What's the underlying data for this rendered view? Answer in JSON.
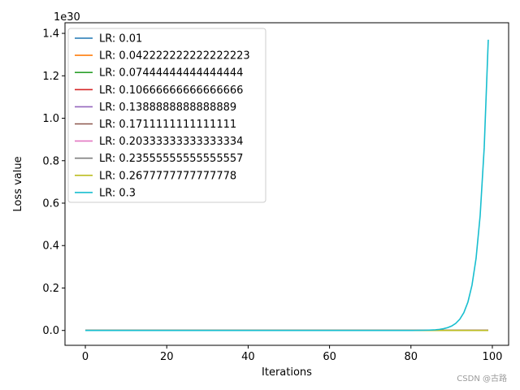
{
  "chart_data": {
    "type": "line",
    "title": "",
    "xlabel": "Iterations",
    "ylabel": "Loss value",
    "y_offset_text": "1e30",
    "y_scale_factor": 1e+30,
    "xlim": [
      -5,
      104
    ],
    "ylim": [
      -0.07,
      1.45
    ],
    "xticks": [
      0,
      20,
      40,
      60,
      80,
      100
    ],
    "xtick_labels": [
      "0",
      "20",
      "40",
      "60",
      "80",
      "100"
    ],
    "yticks": [
      0.0,
      0.2,
      0.4,
      0.6,
      0.8,
      1.0,
      1.2,
      1.4
    ],
    "ytick_labels": [
      "0.0",
      "0.2",
      "0.4",
      "0.6",
      "0.8",
      "1.0",
      "1.2",
      "1.4"
    ],
    "grid": false,
    "legend_position": "top-left",
    "x_range": [
      0,
      99
    ],
    "series": [
      {
        "name": "LR: 0.01",
        "color": "#1f77b4",
        "growth_end": 0,
        "growth_rate": 0
      },
      {
        "name": "LR: 0.042222222222222223",
        "color": "#ff7f0e",
        "growth_end": 0,
        "growth_rate": 0
      },
      {
        "name": "LR: 0.07444444444444444",
        "color": "#2ca02c",
        "growth_end": 0,
        "growth_rate": 0
      },
      {
        "name": "LR: 0.10666666666666666",
        "color": "#d62728",
        "growth_end": 0,
        "growth_rate": 0
      },
      {
        "name": "LR: 0.1388888888888889",
        "color": "#9467bd",
        "growth_end": 0,
        "growth_rate": 0
      },
      {
        "name": "LR: 0.1711111111111111",
        "color": "#8c564b",
        "growth_end": 0,
        "growth_rate": 0
      },
      {
        "name": "LR: 0.20333333333333334",
        "color": "#e377c2",
        "growth_end": 0,
        "growth_rate": 0
      },
      {
        "name": "LR: 0.23555555555555557",
        "color": "#7f7f7f",
        "growth_end": 0,
        "growth_rate": 0
      },
      {
        "name": "LR: 0.2677777777777778",
        "color": "#bcbd22",
        "growth_end": 0,
        "growth_rate": 0
      },
      {
        "name": "LR: 0.3",
        "color": "#17becf",
        "growth_end": 1.37,
        "growth_rate": 0.465
      }
    ]
  },
  "watermark": "CSDN @古路"
}
